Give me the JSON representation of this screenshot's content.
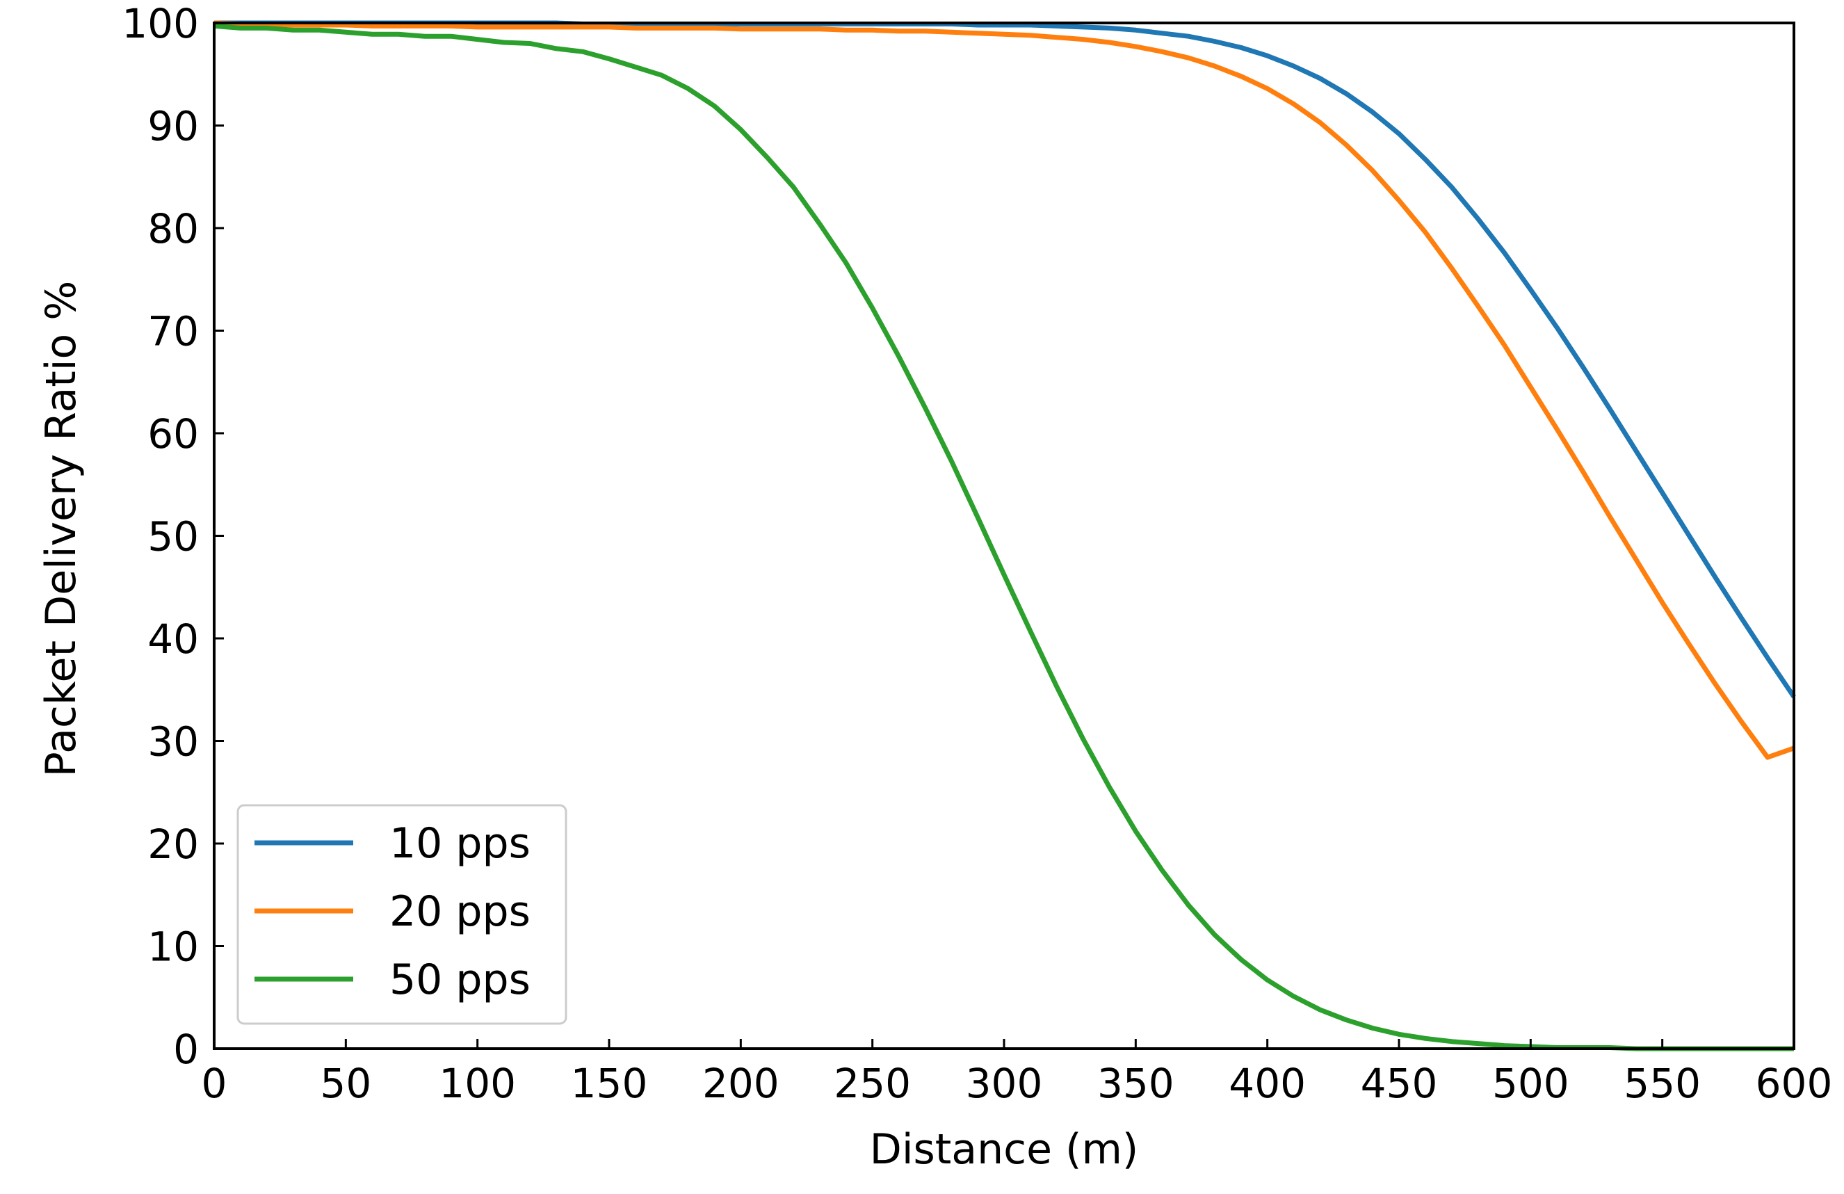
{
  "chart_data": {
    "type": "line",
    "title": "",
    "xlabel": "Distance (m)",
    "ylabel": "Packet Delivery Ratio %",
    "xlim": [
      0,
      600
    ],
    "ylim": [
      0,
      100
    ],
    "xticks": [
      0,
      50,
      100,
      150,
      200,
      250,
      300,
      350,
      400,
      450,
      500,
      550,
      600
    ],
    "yticks": [
      0,
      10,
      20,
      30,
      40,
      50,
      60,
      70,
      80,
      90,
      100
    ],
    "grid": false,
    "legend_position": "lower-left",
    "x": [
      0,
      10,
      20,
      30,
      40,
      50,
      60,
      70,
      80,
      90,
      100,
      110,
      120,
      130,
      140,
      150,
      160,
      170,
      180,
      190,
      200,
      210,
      220,
      230,
      240,
      250,
      260,
      270,
      280,
      290,
      300,
      310,
      320,
      330,
      340,
      350,
      360,
      370,
      380,
      390,
      400,
      410,
      420,
      430,
      440,
      450,
      460,
      470,
      480,
      490,
      500,
      510,
      520,
      530,
      540,
      550,
      560,
      570,
      580,
      590,
      600
    ],
    "series": [
      {
        "name": "10 pps",
        "color": "#1f77b4",
        "values": [
          100,
          100,
          100,
          100,
          100,
          100,
          100,
          100,
          100,
          100,
          100,
          100,
          100,
          100,
          99.9,
          99.9,
          99.9,
          99.9,
          99.9,
          99.9,
          99.9,
          99.9,
          99.9,
          99.9,
          99.9,
          99.9,
          99.9,
          99.9,
          99.9,
          99.8,
          99.8,
          99.8,
          99.7,
          99.6,
          99.5,
          99.3,
          99.0,
          98.7,
          98.2,
          97.6,
          96.8,
          95.8,
          94.6,
          93.1,
          91.3,
          89.2,
          86.7,
          84.0,
          80.9,
          77.6,
          74.0,
          70.3,
          66.4,
          62.4,
          58.3,
          54.2,
          50.1,
          46.0,
          42.0,
          38.1,
          34.3
        ]
      },
      {
        "name": "20 pps",
        "color": "#ff7f0e",
        "values": [
          100,
          99.9,
          99.9,
          99.8,
          99.8,
          99.8,
          99.7,
          99.7,
          99.7,
          99.7,
          99.6,
          99.6,
          99.6,
          99.6,
          99.6,
          99.6,
          99.5,
          99.5,
          99.5,
          99.5,
          99.4,
          99.4,
          99.4,
          99.4,
          99.3,
          99.3,
          99.2,
          99.2,
          99.1,
          99.0,
          98.9,
          98.8,
          98.6,
          98.4,
          98.1,
          97.7,
          97.2,
          96.6,
          95.8,
          94.8,
          93.6,
          92.1,
          90.3,
          88.1,
          85.6,
          82.7,
          79.6,
          76.1,
          72.4,
          68.6,
          64.5,
          60.4,
          56.2,
          51.9,
          47.7,
          43.5,
          39.5,
          35.6,
          31.9,
          28.4,
          29.3
        ]
      },
      {
        "name": "50 pps",
        "color": "#2ca02c",
        "values": [
          99.7,
          99.5,
          99.5,
          99.3,
          99.3,
          99.1,
          98.9,
          98.9,
          98.7,
          98.7,
          98.4,
          98.1,
          98.0,
          97.5,
          97.2,
          96.5,
          95.7,
          94.9,
          93.6,
          91.9,
          89.6,
          86.9,
          84.0,
          80.4,
          76.6,
          72.2,
          67.5,
          62.5,
          57.3,
          51.8,
          46.2,
          40.7,
          35.3,
          30.2,
          25.5,
          21.2,
          17.4,
          14.0,
          11.1,
          8.7,
          6.7,
          5.1,
          3.8,
          2.8,
          2.0,
          1.4,
          1.0,
          0.7,
          0.5,
          0.3,
          0.2,
          0.1,
          0.1,
          0.1,
          0,
          0,
          0,
          0,
          0,
          0,
          0
        ]
      }
    ]
  }
}
